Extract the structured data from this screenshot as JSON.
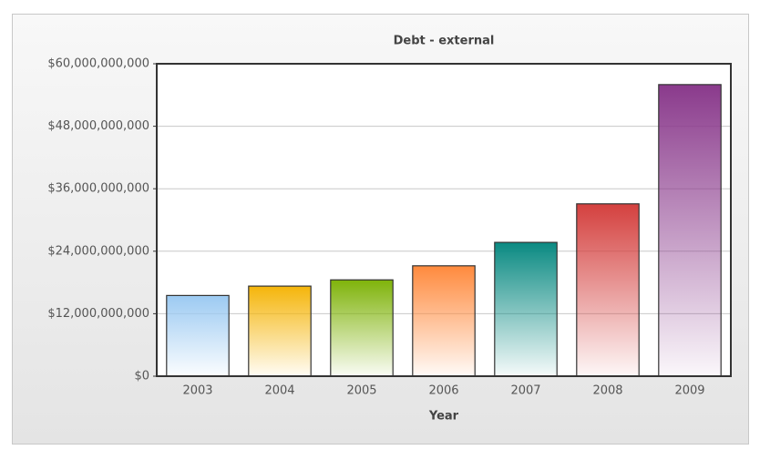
{
  "chart_data": {
    "type": "bar",
    "title": "Debt - external",
    "x_label": "Year",
    "categories": [
      "2003",
      "2004",
      "2005",
      "2006",
      "2007",
      "2008",
      "2009"
    ],
    "values": [
      15500000000,
      17300000000,
      18500000000,
      21200000000,
      25700000000,
      33100000000,
      56000000000
    ],
    "colors": [
      "#9ccaf2",
      "#f5b50a",
      "#7fb30a",
      "#ff8a3d",
      "#0a8a82",
      "#d4403e",
      "#8a3a8c"
    ],
    "ylim": [
      0,
      60000000000
    ],
    "yticks": [
      {
        "value": 0,
        "label": "$0"
      },
      {
        "value": 12000000000,
        "label": "$12,000,000,000"
      },
      {
        "value": 24000000000,
        "label": "$24,000,000,000"
      },
      {
        "value": 36000000000,
        "label": "$36,000,000,000"
      },
      {
        "value": 48000000000,
        "label": "$48,000,000,000"
      },
      {
        "value": 60000000000,
        "label": "$60,000,000,000"
      }
    ],
    "grid": true
  }
}
